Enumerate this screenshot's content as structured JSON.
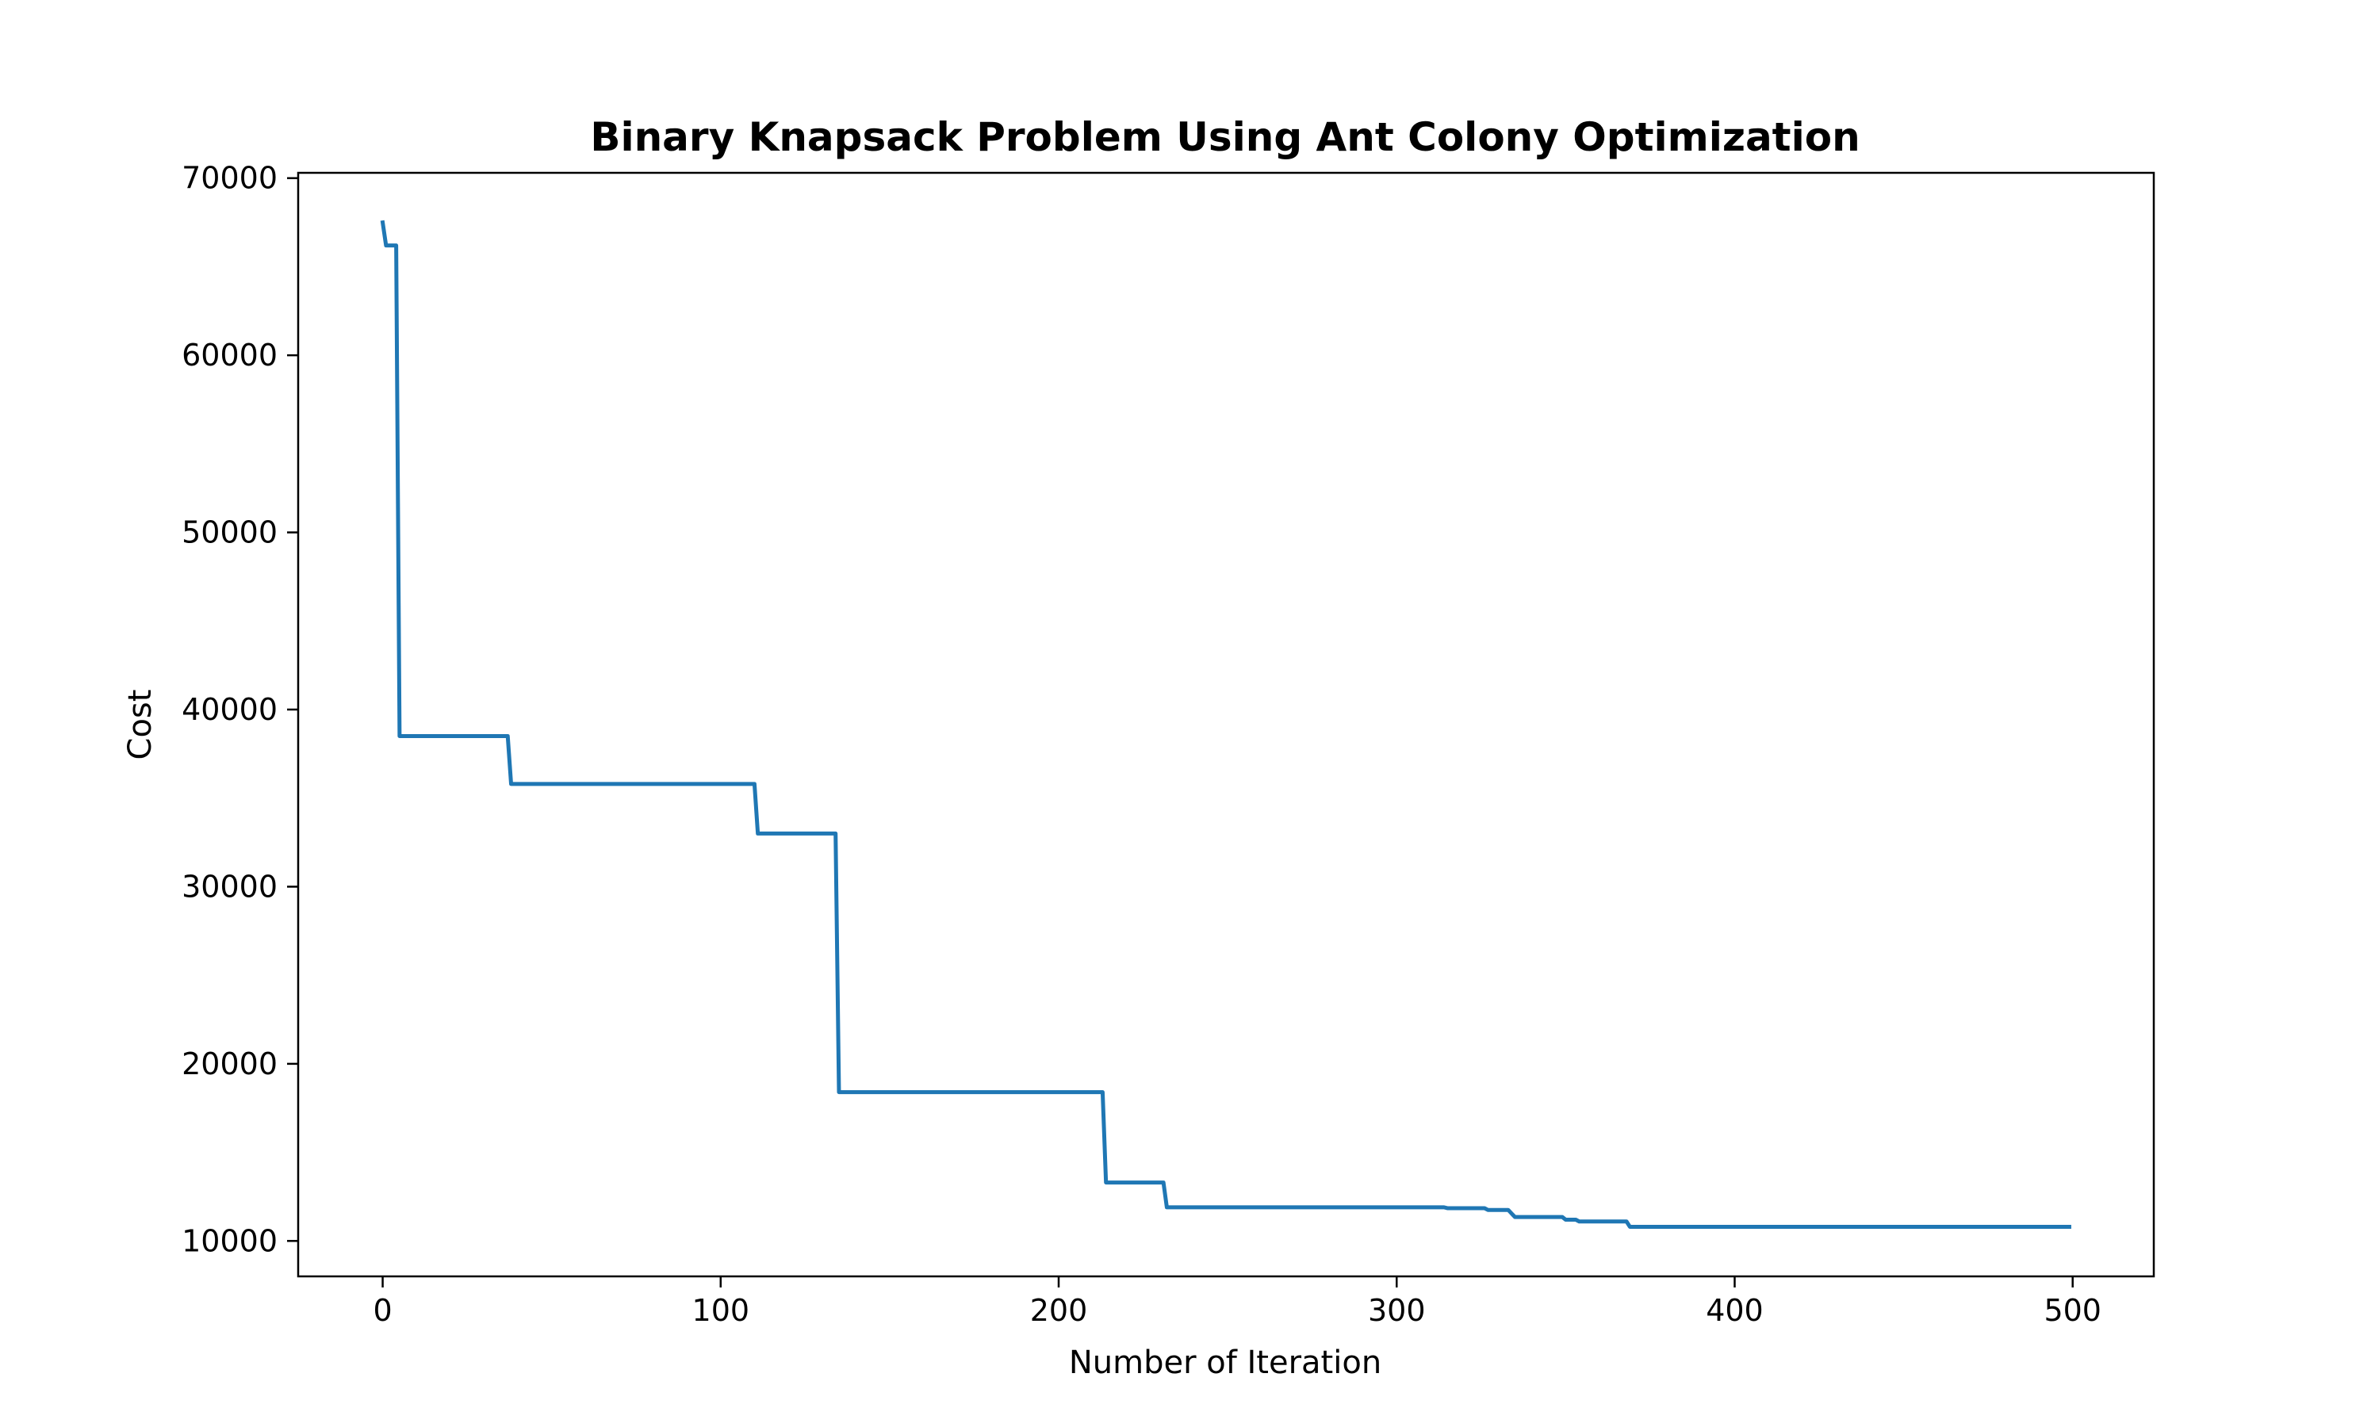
{
  "chart_data": {
    "type": "line",
    "title": "Binary Knapsack Problem Using Ant Colony Optimization",
    "xlabel": "Number of Iteration",
    "ylabel": "Cost",
    "xlim": [
      -25,
      524
    ],
    "ylim": [
      8000,
      70300
    ],
    "x_ticks": [
      0,
      100,
      200,
      300,
      400,
      500
    ],
    "y_ticks": [
      10000,
      20000,
      30000,
      40000,
      50000,
      60000,
      70000
    ],
    "grid": false,
    "legend": "none",
    "series": [
      {
        "color": "#1f77b4",
        "x": [
          0,
          1,
          4,
          5,
          37,
          38,
          110,
          111,
          134,
          135,
          213,
          214,
          231,
          232,
          314,
          315,
          326,
          327,
          333,
          334,
          335,
          336,
          349,
          350,
          353,
          354,
          368,
          369,
          499
        ],
        "y": [
          67500,
          66200,
          66200,
          38500,
          38500,
          35800,
          35800,
          33000,
          33000,
          18400,
          18400,
          13300,
          13300,
          11900,
          11900,
          11850,
          11850,
          11750,
          11750,
          11550,
          11350,
          11350,
          11350,
          11200,
          11200,
          11100,
          11100,
          10800,
          10800
        ]
      }
    ]
  }
}
